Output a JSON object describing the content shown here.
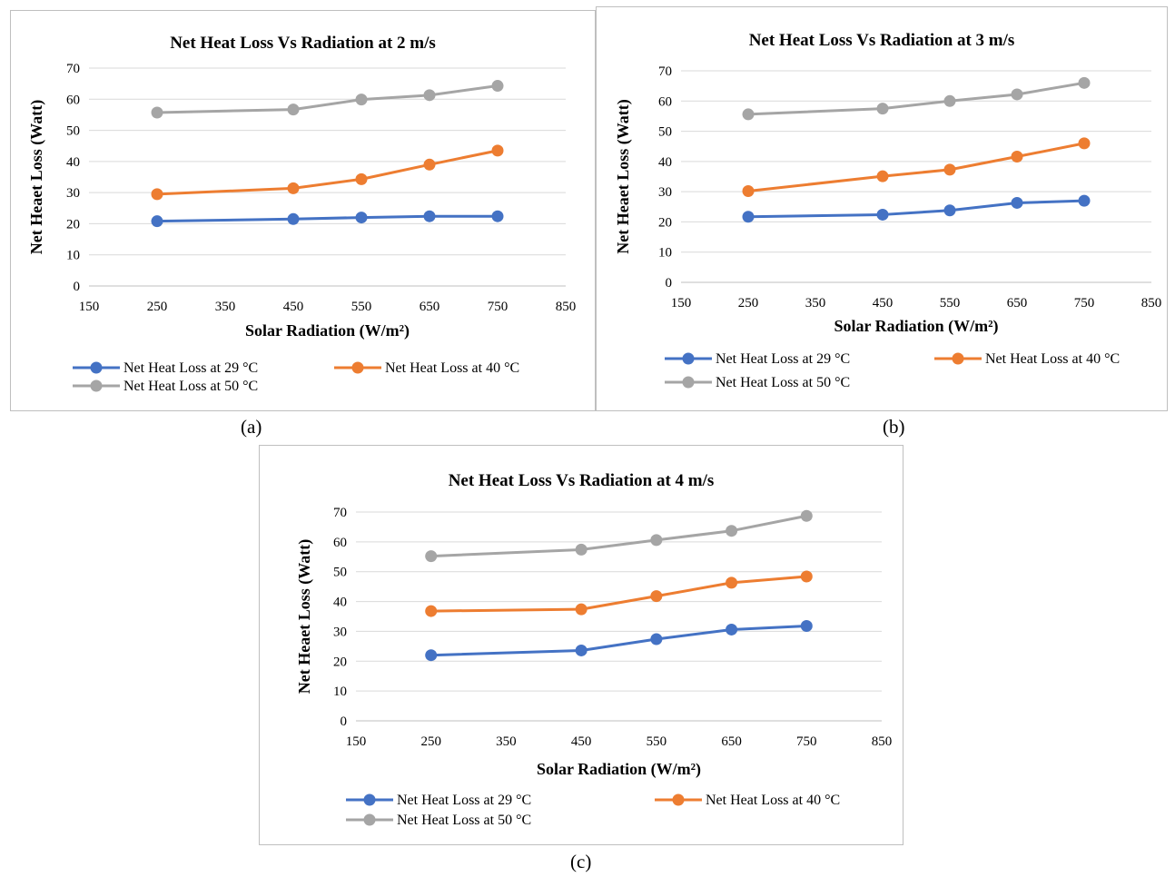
{
  "colors": {
    "s29": "#4472c4",
    "s40": "#ed7d31",
    "s50": "#a5a5a5"
  },
  "chart_data": [
    {
      "id": "a",
      "sub_label": "(a)",
      "type": "line",
      "title": "Net Heat Loss Vs Radiation at 2 m/s",
      "xlabel": "Solar Radiation (W/m²)",
      "ylabel": "Net Heaet Loss (Watt)",
      "xlim": [
        150,
        850
      ],
      "ylim": [
        0,
        70
      ],
      "xticks": [
        150,
        250,
        350,
        450,
        550,
        650,
        750,
        850
      ],
      "yticks": [
        0,
        10,
        20,
        30,
        40,
        50,
        60,
        70
      ],
      "grid": true,
      "legend_position": "bottom",
      "x": [
        250,
        450,
        550,
        650,
        750
      ],
      "series": [
        {
          "name": "Net Heat Loss at 29 °C",
          "color": "#4472c4",
          "values": [
            20.8,
            21.5,
            22.0,
            22.4,
            22.4
          ]
        },
        {
          "name": "Net Heat Loss at 40 °C",
          "color": "#ed7d31",
          "values": [
            29.5,
            31.4,
            34.3,
            39.0,
            43.5
          ]
        },
        {
          "name": "Net Heat Loss at 50 °C",
          "color": "#a5a5a5",
          "values": [
            55.7,
            56.7,
            59.9,
            61.3,
            64.3
          ]
        }
      ]
    },
    {
      "id": "b",
      "sub_label": "(b)",
      "type": "line",
      "title": "Net Heat Loss Vs Radiation at 3 m/s",
      "xlabel": "Solar Radiation (W/m²)",
      "ylabel": "Net Heaet Loss (Watt)",
      "xlim": [
        150,
        850
      ],
      "ylim": [
        0,
        70
      ],
      "xticks": [
        150,
        250,
        350,
        450,
        550,
        650,
        750,
        850
      ],
      "yticks": [
        0,
        10,
        20,
        30,
        40,
        50,
        60,
        70
      ],
      "grid": true,
      "legend_position": "bottom",
      "x": [
        250,
        450,
        550,
        650,
        750
      ],
      "series": [
        {
          "name": "Net Heat Loss at 29 °C",
          "color": "#4472c4",
          "values": [
            21.7,
            22.4,
            23.8,
            26.3,
            27.0
          ]
        },
        {
          "name": "Net Heat Loss at 40 °C",
          "color": "#ed7d31",
          "values": [
            30.2,
            35.1,
            37.3,
            41.6,
            46.0
          ]
        },
        {
          "name": "Net Heat Loss at 50 °C",
          "color": "#a5a5a5",
          "values": [
            55.6,
            57.5,
            60.0,
            62.2,
            66.0
          ]
        }
      ]
    },
    {
      "id": "c",
      "sub_label": "(c)",
      "type": "line",
      "title": "Net Heat Loss Vs Radiation at 4 m/s",
      "xlabel": "Solar Radiation (W/m²)",
      "ylabel": "Net Heaet Loss (Watt)",
      "xlim": [
        150,
        850
      ],
      "ylim": [
        0,
        70
      ],
      "xticks": [
        150,
        250,
        350,
        450,
        550,
        650,
        750,
        850
      ],
      "yticks": [
        0,
        10,
        20,
        30,
        40,
        50,
        60,
        70
      ],
      "grid": true,
      "legend_position": "bottom",
      "x": [
        250,
        450,
        550,
        650,
        750
      ],
      "series": [
        {
          "name": "Net Heat Loss at 29 °C",
          "color": "#4472c4",
          "values": [
            22.0,
            23.6,
            27.4,
            30.6,
            31.8
          ]
        },
        {
          "name": "Net Heat Loss at 40 °C",
          "color": "#ed7d31",
          "values": [
            36.8,
            37.4,
            41.8,
            46.3,
            48.4
          ]
        },
        {
          "name": "Net Heat Loss at 50 °C",
          "color": "#a5a5a5",
          "values": [
            55.2,
            57.4,
            60.6,
            63.7,
            68.7
          ]
        }
      ]
    }
  ]
}
